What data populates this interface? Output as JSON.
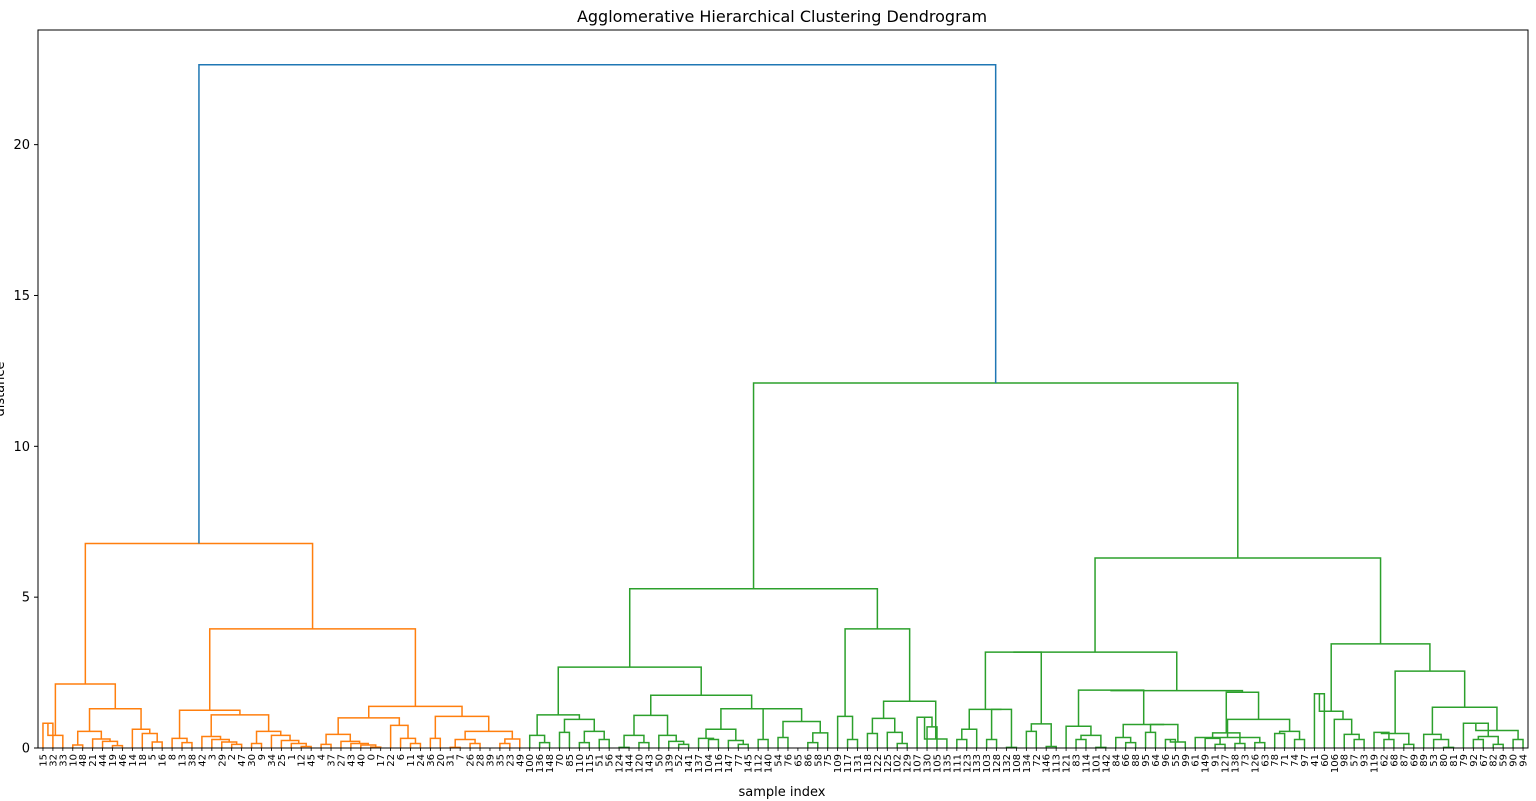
{
  "chart_data": {
    "type": "dendrogram",
    "title": "Agglomerative Hierarchical Clustering Dendrogram",
    "xlabel": "sample index",
    "ylabel": "distance",
    "ylim": [
      0,
      23.8
    ],
    "yticks": [
      0,
      5,
      10,
      15,
      20
    ],
    "grid": false,
    "colors": {
      "top": "#1f77b4",
      "orange": "#ff7f0e",
      "green": "#2ca02c"
    },
    "leaves": [
      "15",
      "32",
      "33",
      "10",
      "48",
      "21",
      "44",
      "19",
      "46",
      "14",
      "18",
      "5",
      "16",
      "8",
      "13",
      "38",
      "42",
      "3",
      "29",
      "2",
      "47",
      "30",
      "9",
      "34",
      "25",
      "1",
      "12",
      "45",
      "4",
      "37",
      "27",
      "43",
      "40",
      "0",
      "17",
      "22",
      "6",
      "11",
      "24",
      "36",
      "20",
      "31",
      "7",
      "26",
      "28",
      "39",
      "35",
      "23",
      "49",
      "100",
      "136",
      "148",
      "70",
      "85",
      "110",
      "115",
      "51",
      "56",
      "124",
      "144",
      "120",
      "143",
      "50",
      "139",
      "52",
      "141",
      "137",
      "104",
      "116",
      "147",
      "77",
      "145",
      "112",
      "140",
      "54",
      "76",
      "65",
      "86",
      "58",
      "75",
      "109",
      "117",
      "131",
      "118",
      "122",
      "125",
      "102",
      "129",
      "107",
      "130",
      "105",
      "135",
      "111",
      "123",
      "133",
      "103",
      "128",
      "132",
      "108",
      "134",
      "72",
      "146",
      "113",
      "121",
      "83",
      "114",
      "101",
      "142",
      "84",
      "66",
      "88",
      "95",
      "64",
      "96",
      "55",
      "99",
      "61",
      "149",
      "91",
      "127",
      "138",
      "73",
      "126",
      "63",
      "78",
      "71",
      "74",
      "97",
      "41",
      "60",
      "106",
      "98",
      "57",
      "93",
      "119",
      "62",
      "68",
      "87",
      "69",
      "89",
      "53",
      "80",
      "81",
      "79",
      "92",
      "67",
      "82",
      "59",
      "90",
      "94"
    ],
    "merges": [
      {
        "l": "15",
        "r": "32",
        "h": 0.82
      },
      {
        "l": "c0",
        "r": "33",
        "h": 0.42
      },
      {
        "l": "10",
        "r": "48",
        "h": 0.1
      },
      {
        "l": "19",
        "r": "46",
        "h": 0.08
      },
      {
        "l": "44",
        "r": "c3",
        "h": 0.22
      },
      {
        "l": "21",
        "r": "c4",
        "h": 0.3
      },
      {
        "l": "c2",
        "r": "c5",
        "h": 0.55
      },
      {
        "l": "5",
        "r": "16",
        "h": 0.2
      },
      {
        "l": "18",
        "r": "c7",
        "h": 0.48
      },
      {
        "l": "14",
        "r": "c8",
        "h": 0.62
      },
      {
        "l": "c6",
        "r": "c9",
        "h": 1.3
      },
      {
        "l": "c1",
        "r": "c10",
        "h": 2.12
      },
      {
        "l": "13",
        "r": "38",
        "h": 0.18
      },
      {
        "l": "8",
        "r": "c12",
        "h": 0.32
      },
      {
        "l": "2",
        "r": "47",
        "h": 0.12
      },
      {
        "l": "29",
        "r": "c14",
        "h": 0.2
      },
      {
        "l": "3",
        "r": "c15",
        "h": 0.28
      },
      {
        "l": "42",
        "r": "c16",
        "h": 0.38
      },
      {
        "l": "30",
        "r": "9",
        "h": 0.15
      },
      {
        "l": "12",
        "r": "45",
        "h": 0.05
      },
      {
        "l": "1",
        "r": "c19",
        "h": 0.15
      },
      {
        "l": "25",
        "r": "c20",
        "h": 0.25
      },
      {
        "l": "34",
        "r": "c21",
        "h": 0.42
      },
      {
        "l": "c18",
        "r": "c22",
        "h": 0.55
      },
      {
        "l": "c17",
        "r": "c23",
        "h": 1.1
      },
      {
        "l": "c13",
        "r": "c24",
        "h": 1.25
      },
      {
        "l": "4",
        "r": "37",
        "h": 0.12
      },
      {
        "l": "0",
        "r": "17",
        "h": 0.03
      },
      {
        "l": "40",
        "r": "c27",
        "h": 0.1
      },
      {
        "l": "43",
        "r": "c28",
        "h": 0.15
      },
      {
        "l": "27",
        "r": "c29",
        "h": 0.22
      },
      {
        "l": "c26",
        "r": "c30",
        "h": 0.45
      },
      {
        "l": "11",
        "r": "24",
        "h": 0.15
      },
      {
        "l": "6",
        "r": "c32",
        "h": 0.32
      },
      {
        "l": "22",
        "r": "c33",
        "h": 0.75
      },
      {
        "l": "c31",
        "r": "c34",
        "h": 1.0
      },
      {
        "l": "36",
        "r": "20",
        "h": 0.32
      },
      {
        "l": "31",
        "r": "7",
        "h": 0.02
      },
      {
        "l": "26",
        "r": "28",
        "h": 0.15
      },
      {
        "l": "c37",
        "r": "c38",
        "h": 0.28
      },
      {
        "l": "35",
        "r": "23",
        "h": 0.15
      },
      {
        "l": "c40",
        "r": "49",
        "h": 0.3
      },
      {
        "l": "c39",
        "r": "c41",
        "h": 0.55
      },
      {
        "l": "c36",
        "r": "c42",
        "h": 1.05
      },
      {
        "l": "c35",
        "r": "c43",
        "h": 1.38
      },
      {
        "l": "c25",
        "r": "c44",
        "h": 3.95
      },
      {
        "l": "c11",
        "r": "c45",
        "h": 6.78
      },
      {
        "l": "136",
        "r": "148",
        "h": 0.18
      },
      {
        "l": "100",
        "r": "c47",
        "h": 0.42
      },
      {
        "l": "70",
        "r": "85",
        "h": 0.52
      },
      {
        "l": "110",
        "r": "115",
        "h": 0.18
      },
      {
        "l": "51",
        "r": "56",
        "h": 0.28
      },
      {
        "l": "c50",
        "r": "c51",
        "h": 0.55
      },
      {
        "l": "c49",
        "r": "c52",
        "h": 0.95
      },
      {
        "l": "c48",
        "r": "c53",
        "h": 1.1
      },
      {
        "l": "124",
        "r": "144",
        "h": 0.02
      },
      {
        "l": "120",
        "r": "143",
        "h": 0.18
      },
      {
        "l": "c55",
        "r": "c56",
        "h": 0.42
      },
      {
        "l": "52",
        "r": "141",
        "h": 0.12
      },
      {
        "l": "139",
        "r": "c58",
        "h": 0.22
      },
      {
        "l": "50",
        "r": "c59",
        "h": 0.42
      },
      {
        "l": "c57",
        "r": "c60",
        "h": 1.08
      },
      {
        "l": "104",
        "r": "116",
        "h": 0.28
      },
      {
        "l": "137",
        "r": "c62",
        "h": 0.32
      },
      {
        "l": "77",
        "r": "145",
        "h": 0.12
      },
      {
        "l": "147",
        "r": "c64",
        "h": 0.25
      },
      {
        "l": "c63",
        "r": "c65",
        "h": 0.62
      },
      {
        "l": "112",
        "r": "140",
        "h": 0.28
      },
      {
        "l": "54",
        "r": "76",
        "h": 0.35
      },
      {
        "l": "86",
        "r": "58",
        "h": 0.18
      },
      {
        "l": "c69",
        "r": "75",
        "h": 0.5
      },
      {
        "l": "c68",
        "r": "c70",
        "h": 0.88
      },
      {
        "l": "c67",
        "r": "c71",
        "h": 1.3
      },
      {
        "l": "c66",
        "r": "c72",
        "h": 1.3
      },
      {
        "l": "c61",
        "r": "c73",
        "h": 1.75
      },
      {
        "l": "c54",
        "r": "c74",
        "h": 2.68
      },
      {
        "l": "117",
        "r": "131",
        "h": 0.28
      },
      {
        "l": "109",
        "r": "c76",
        "h": 1.05
      },
      {
        "l": "118",
        "r": "122",
        "h": 0.48
      },
      {
        "l": "102",
        "r": "129",
        "h": 0.15
      },
      {
        "l": "125",
        "r": "c79",
        "h": 0.52
      },
      {
        "l": "c78",
        "r": "c80",
        "h": 0.98
      },
      {
        "l": "130",
        "r": "105",
        "h": 0.7
      },
      {
        "l": "107",
        "r": "c82",
        "h": 1.02
      },
      {
        "l": "c83",
        "r": "135",
        "h": 0.3
      },
      {
        "l": "c81",
        "r": "c84",
        "h": 1.55
      },
      {
        "l": "c77",
        "r": "c85",
        "h": 3.95
      },
      {
        "l": "c75",
        "r": "c86",
        "h": 5.28
      },
      {
        "l": "111",
        "r": "123",
        "h": 0.28
      },
      {
        "l": "c88",
        "r": "133",
        "h": 0.62
      },
      {
        "l": "103",
        "r": "128",
        "h": 0.28
      },
      {
        "l": "132",
        "r": "108",
        "h": 0.02
      },
      {
        "l": "c90",
        "r": "c91",
        "h": 1.28
      },
      {
        "l": "c89",
        "r": "c92",
        "h": 1.28
      },
      {
        "l": "134",
        "r": "72",
        "h": 0.55
      },
      {
        "l": "146",
        "r": "113",
        "h": 0.05
      },
      {
        "l": "c94",
        "r": "c95",
        "h": 0.8
      },
      {
        "l": "c93",
        "r": "c96",
        "h": 3.18
      },
      {
        "l": "83",
        "r": "114",
        "h": 0.28
      },
      {
        "l": "101",
        "r": "142",
        "h": 0.02
      },
      {
        "l": "c98",
        "r": "c99",
        "h": 0.42
      },
      {
        "l": "121",
        "r": "c100",
        "h": 0.72
      },
      {
        "l": "66",
        "r": "88",
        "h": 0.18
      },
      {
        "l": "84",
        "r": "c102",
        "h": 0.35
      },
      {
        "l": "95",
        "r": "64",
        "h": 0.52
      },
      {
        "l": "96",
        "r": "55",
        "h": 0.28
      },
      {
        "l": "c105",
        "r": "99",
        "h": 0.2
      },
      {
        "l": "c104",
        "r": "c106",
        "h": 0.78
      },
      {
        "l": "c103",
        "r": "c107",
        "h": 0.78
      },
      {
        "l": "c101",
        "r": "c108",
        "h": 1.92
      },
      {
        "l": "91",
        "r": "127",
        "h": 0.12
      },
      {
        "l": "149",
        "r": "c110",
        "h": 0.32
      },
      {
        "l": "138",
        "r": "73",
        "h": 0.15
      },
      {
        "l": "c111",
        "r": "c112",
        "h": 0.5
      },
      {
        "l": "126",
        "r": "63",
        "h": 0.18
      },
      {
        "l": "61",
        "r": "c114",
        "h": 0.35
      },
      {
        "l": "78",
        "r": "71",
        "h": 0.48
      },
      {
        "l": "74",
        "r": "97",
        "h": 0.28
      },
      {
        "l": "c116",
        "r": "c117",
        "h": 0.55
      },
      {
        "l": "c115",
        "r": "c118",
        "h": 0.95
      },
      {
        "l": "c113",
        "r": "c119",
        "h": 1.85
      },
      {
        "l": "c109",
        "r": "c120",
        "h": 1.9
      },
      {
        "l": "c97",
        "r": "c121",
        "h": 3.18
      },
      {
        "l": "41",
        "r": "60",
        "h": 1.8
      },
      {
        "l": "57",
        "r": "93",
        "h": 0.28
      },
      {
        "l": "98",
        "r": "c124",
        "h": 0.45
      },
      {
        "l": "106",
        "r": "c125",
        "h": 0.95
      },
      {
        "l": "c123",
        "r": "c126",
        "h": 1.22
      },
      {
        "l": "62",
        "r": "68",
        "h": 0.28
      },
      {
        "l": "119",
        "r": "c128",
        "h": 0.52
      },
      {
        "l": "87",
        "r": "69",
        "h": 0.12
      },
      {
        "l": "c129",
        "r": "c130",
        "h": 0.48
      },
      {
        "l": "80",
        "r": "81",
        "h": 0.02
      },
      {
        "l": "53",
        "r": "c132",
        "h": 0.28
      },
      {
        "l": "89",
        "r": "c133",
        "h": 0.45
      },
      {
        "l": "92",
        "r": "67",
        "h": 0.28
      },
      {
        "l": "82",
        "r": "59",
        "h": 0.12
      },
      {
        "l": "c135",
        "r": "c136",
        "h": 0.38
      },
      {
        "l": "79",
        "r": "c137",
        "h": 0.82
      },
      {
        "l": "90",
        "r": "94",
        "h": 0.28
      },
      {
        "l": "c138",
        "r": "c139",
        "h": 0.58
      },
      {
        "l": "c134",
        "r": "c140",
        "h": 1.35
      },
      {
        "l": "c131",
        "r": "c141",
        "h": 2.55
      },
      {
        "l": "c127",
        "r": "c142",
        "h": 3.45
      },
      {
        "l": "c122",
        "r": "c143",
        "h": 6.3
      },
      {
        "l": "c87",
        "r": "c144",
        "h": 12.1
      },
      {
        "l": "c46",
        "r": "c145",
        "h": 22.65
      }
    ]
  }
}
